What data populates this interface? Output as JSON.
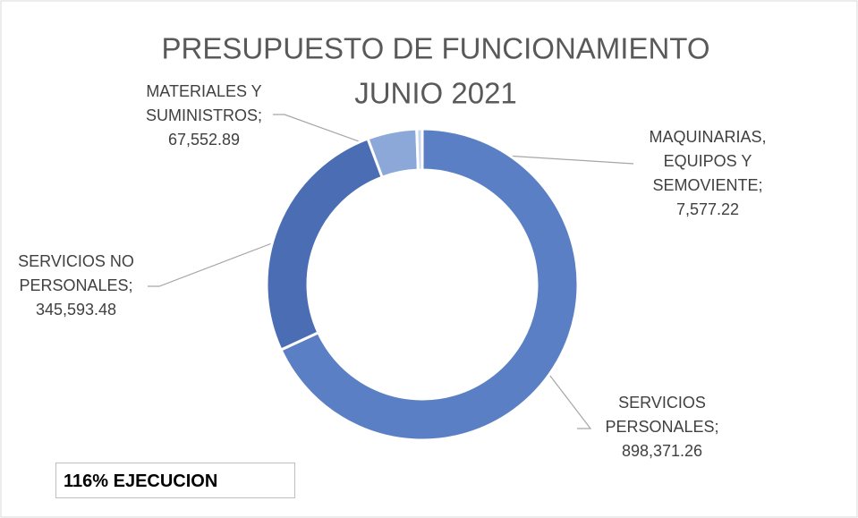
{
  "chart_data": {
    "type": "donut",
    "title_lines": [
      "PRESUPUESTO DE FUNCIONAMIENTO",
      "JUNIO 2021"
    ],
    "categories": [
      "SERVICIOS PERSONALES;",
      "SERVICIOS NO PERSONALES;",
      "MATERIALES Y SUMINISTROS;",
      "MAQUINARIAS, EQUIPOS Y SEMOVIENTE;"
    ],
    "values": [
      898371.26,
      345593.48,
      67552.89,
      7577.22
    ],
    "value_labels": [
      "898,371.26",
      "345,593.48",
      "67,552.89",
      "7,577.22"
    ],
    "colors": [
      "#5b7fc4",
      "#4a6db4",
      "#8ba8d9",
      "#c9d6ee"
    ],
    "annotation": "116% EJECUCION"
  }
}
